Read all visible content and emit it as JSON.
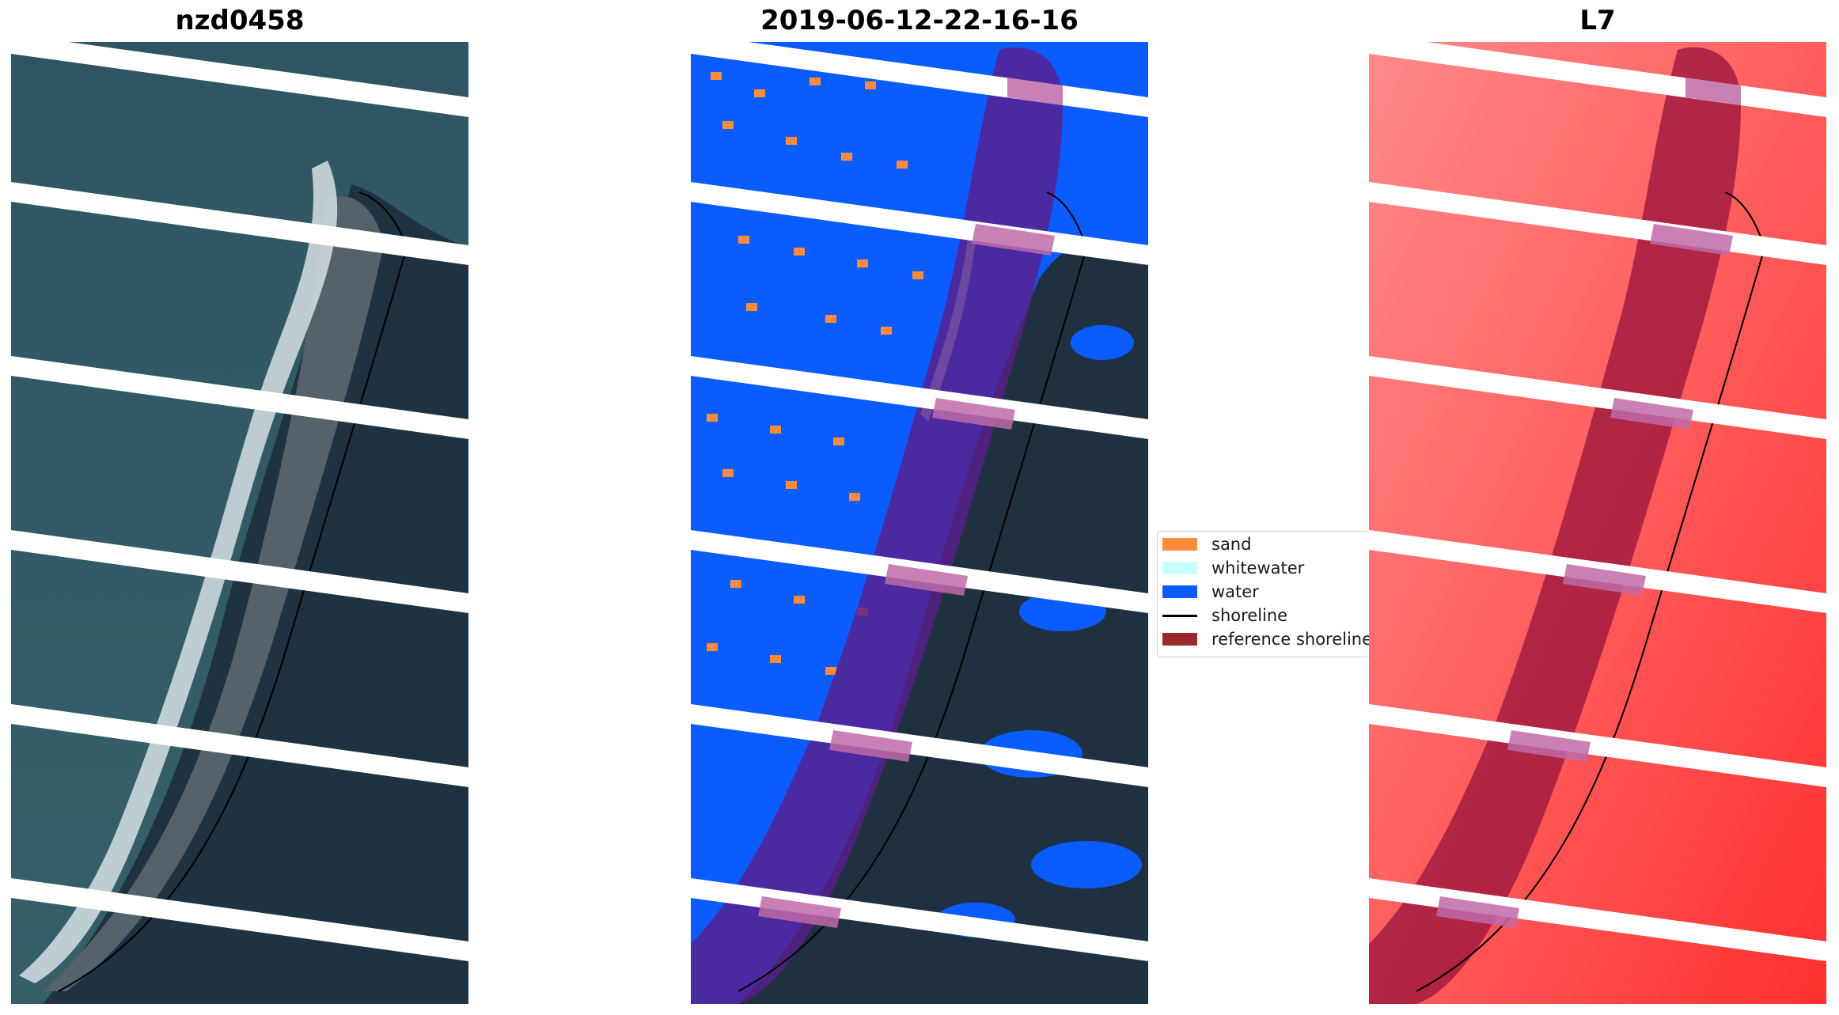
{
  "panels": [
    {
      "title": "nzd0458"
    },
    {
      "title": "2019-06-12-22-16-16"
    },
    {
      "title": "L7"
    }
  ],
  "legend": {
    "items": [
      {
        "label": "sand",
        "color": "#ff8c3a",
        "kind": "patch"
      },
      {
        "label": "whitewater",
        "color": "#c8ffff",
        "kind": "patch"
      },
      {
        "label": "water",
        "color": "#0a5cff",
        "kind": "patch"
      },
      {
        "label": "shoreline",
        "color": "#000000",
        "kind": "line"
      },
      {
        "label": "reference shoreline",
        "color": "#9a2a2a",
        "kind": "patch"
      }
    ]
  },
  "colors": {
    "ocean": "#2b4e5e",
    "land": "#1f3140",
    "surf": "#d9e3e6",
    "classified_water": "#0a5cff",
    "sand": "#ff8c3a",
    "whitewater": "#c8ffff",
    "reference_buffer": "#6a1f8c",
    "l7_background": "#ff5a5a",
    "l7_buffer": "#a01840",
    "gap": "#ffffff"
  }
}
